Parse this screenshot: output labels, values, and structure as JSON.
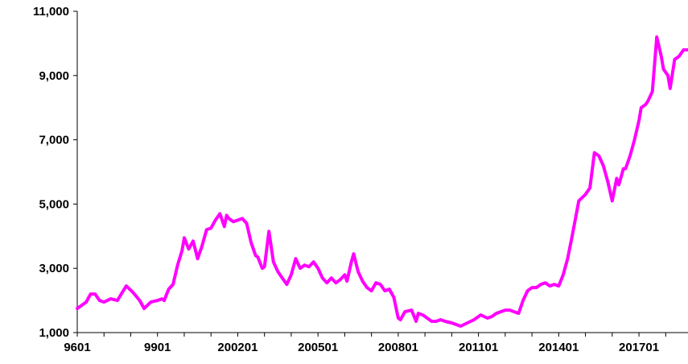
{
  "chart_data": {
    "type": "line",
    "title": "",
    "xlabel": "",
    "ylabel": "",
    "ylim": [
      1000,
      11000
    ],
    "yticks": [
      "1,000",
      "3,000",
      "5,000",
      "7,000",
      "9,000",
      "11,000"
    ],
    "ytick_values": [
      1000,
      3000,
      5000,
      7000,
      9000,
      11000
    ],
    "xtick_labels": [
      "9601",
      "9901",
      "200201",
      "200501",
      "200801",
      "201101",
      "201401",
      "201701"
    ],
    "xtick_months": [
      0,
      36,
      72,
      108,
      144,
      180,
      216,
      252
    ],
    "xlim_months": [
      0,
      274
    ],
    "grid": false,
    "legend": "none",
    "line_color": "#ff00ff",
    "series": [
      {
        "months": [
          0,
          4,
          6,
          8,
          10,
          12,
          15,
          18,
          22,
          25,
          28,
          30,
          33,
          36,
          38,
          39,
          41,
          43,
          45,
          47,
          48,
          50,
          52,
          54,
          56,
          58,
          60,
          62,
          64,
          66,
          67,
          68,
          70,
          72,
          74,
          76,
          78,
          80,
          81,
          83,
          84,
          86,
          88,
          90,
          92,
          94,
          96,
          98,
          100,
          102,
          104,
          106,
          108,
          110,
          112,
          114,
          116,
          118,
          120,
          121,
          123,
          124,
          126,
          128,
          130,
          132,
          134,
          136,
          138,
          140,
          142,
          144,
          145,
          147,
          150,
          152,
          153,
          155,
          157,
          159,
          161,
          163,
          165,
          168,
          170,
          172,
          175,
          178,
          181,
          184,
          186,
          188,
          190,
          192,
          194,
          196,
          198,
          200,
          202,
          204,
          206,
          208,
          210,
          212,
          214,
          216,
          218,
          220,
          222,
          225,
          228,
          230,
          232,
          234,
          236,
          238,
          240,
          242,
          243,
          245,
          246,
          248,
          250,
          252,
          253,
          255,
          256,
          258,
          260,
          262,
          263,
          265,
          266,
          268,
          270,
          272,
          274
        ],
        "values": [
          1750,
          1950,
          2200,
          2200,
          2000,
          1950,
          2050,
          2000,
          2450,
          2250,
          2000,
          1750,
          1950,
          2000,
          2050,
          2000,
          2350,
          2500,
          3100,
          3550,
          3950,
          3600,
          3850,
          3300,
          3700,
          4200,
          4250,
          4500,
          4700,
          4300,
          4650,
          4550,
          4450,
          4500,
          4550,
          4400,
          3800,
          3400,
          3350,
          3000,
          3050,
          4150,
          3200,
          2900,
          2700,
          2500,
          2800,
          3300,
          3000,
          3100,
          3050,
          3200,
          3000,
          2700,
          2550,
          2700,
          2550,
          2650,
          2800,
          2600,
          3200,
          3450,
          2900,
          2600,
          2400,
          2300,
          2550,
          2500,
          2300,
          2350,
          2100,
          1450,
          1400,
          1650,
          1700,
          1350,
          1600,
          1550,
          1450,
          1350,
          1350,
          1400,
          1350,
          1300,
          1250,
          1200,
          1300,
          1400,
          1550,
          1450,
          1500,
          1600,
          1650,
          1700,
          1700,
          1650,
          1600,
          2000,
          2300,
          2400,
          2400,
          2500,
          2550,
          2450,
          2500,
          2450,
          2800,
          3300,
          4000,
          5100,
          5300,
          5500,
          6600,
          6500,
          6200,
          5700,
          5100,
          5800,
          5600,
          6100,
          6100,
          6500,
          7000,
          7600,
          8000,
          8100,
          8200,
          8500,
          10200,
          9600,
          9200,
          9000,
          8600,
          9500,
          9600,
          9800,
          9800
        ]
      }
    ]
  }
}
